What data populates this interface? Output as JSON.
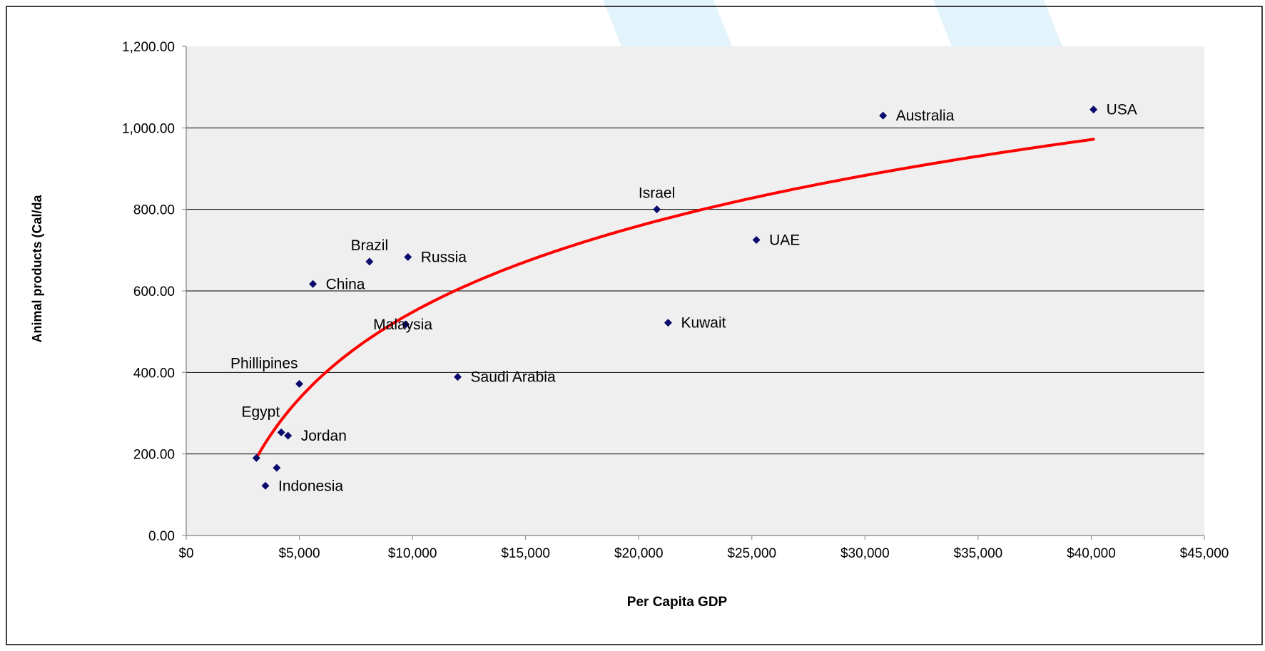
{
  "colors": {
    "background": "#ffffff",
    "plot_bg": "#efefef",
    "gridline": "#000000",
    "point": "#0a0a6e",
    "trend": "#ff0000",
    "accent_band": "#e3f3fc"
  },
  "chart_data": {
    "type": "scatter",
    "title": "",
    "xlabel": "Per Capita GDP",
    "ylabel": "Animal products (Cal/da",
    "xlim": [
      0,
      45000
    ],
    "ylim": [
      0,
      1200
    ],
    "x_ticks": [
      0,
      5000,
      10000,
      15000,
      20000,
      25000,
      30000,
      35000,
      40000,
      45000
    ],
    "x_tick_labels": [
      "$0",
      "$5,000",
      "$10,000",
      "$15,000",
      "$20,000",
      "$25,000",
      "$30,000",
      "$35,000",
      "$40,000",
      "$45,000"
    ],
    "y_ticks": [
      0,
      200,
      400,
      600,
      800,
      1000,
      1200
    ],
    "y_tick_labels": [
      "0.00",
      "200.00",
      "400.00",
      "600.00",
      "800.00",
      "1,000.00",
      "1,200.00"
    ],
    "grid": true,
    "legend": "none",
    "points": [
      {
        "label": "USA",
        "x": 40100,
        "y": 1045,
        "label_pos": "right"
      },
      {
        "label": "Australia",
        "x": 30800,
        "y": 1030,
        "label_pos": "right"
      },
      {
        "label": "Israel",
        "x": 20800,
        "y": 800,
        "label_pos": "above"
      },
      {
        "label": "UAE",
        "x": 25200,
        "y": 725,
        "label_pos": "right"
      },
      {
        "label": "Kuwait",
        "x": 21300,
        "y": 522,
        "label_pos": "right"
      },
      {
        "label": "Russia",
        "x": 9800,
        "y": 683,
        "label_pos": "right"
      },
      {
        "label": "Brazil",
        "x": 8100,
        "y": 672,
        "label_pos": "above"
      },
      {
        "label": "China",
        "x": 5600,
        "y": 617,
        "label_pos": "right"
      },
      {
        "label": "Malaysia",
        "x": 9700,
        "y": 518,
        "label_pos": "center"
      },
      {
        "label": "Saudi Arabia",
        "x": 12000,
        "y": 389,
        "label_pos": "right"
      },
      {
        "label": "Phillipines",
        "x": 5000,
        "y": 372,
        "label_pos": "above-left"
      },
      {
        "label": "Egypt",
        "x": 4200,
        "y": 253,
        "label_pos": "above-left"
      },
      {
        "label": "Jordan",
        "x": 4500,
        "y": 245,
        "label_pos": "right"
      },
      {
        "label": "",
        "x": 3100,
        "y": 190,
        "label_pos": "none"
      },
      {
        "label": "",
        "x": 4000,
        "y": 166,
        "label_pos": "none"
      },
      {
        "label": "Indonesia",
        "x": 3500,
        "y": 122,
        "label_pos": "right"
      }
    ],
    "trendline": {
      "type": "logarithmic",
      "x_range": [
        3100,
        40100
      ],
      "y_range": [
        190,
        972
      ]
    }
  }
}
